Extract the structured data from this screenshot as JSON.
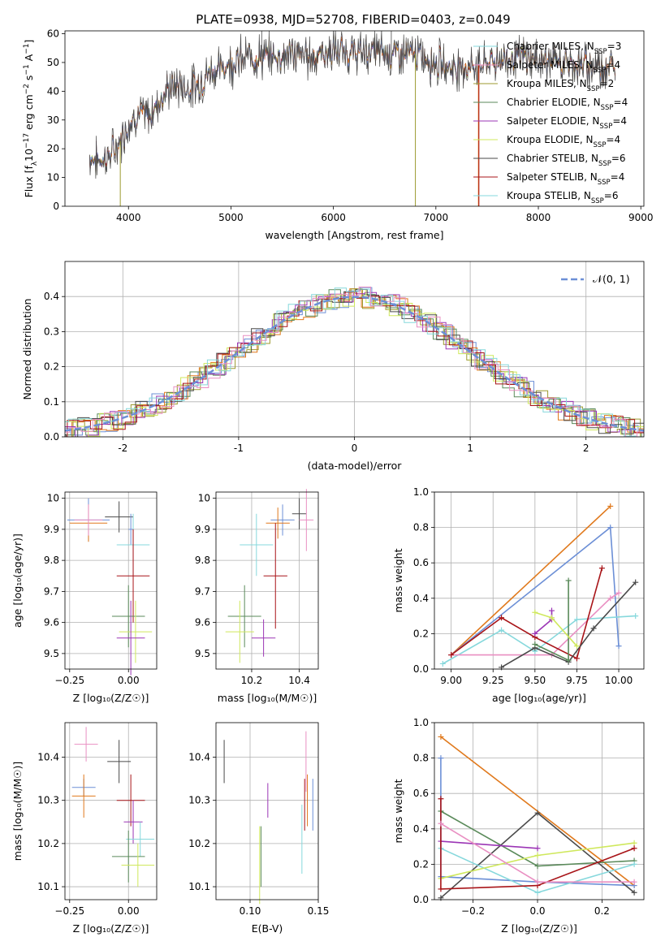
{
  "title": "PLATE=0938, MJD=52708, FIBERID=0403, z=0.049",
  "colors": {
    "blue": "#6c8fd6",
    "orange": "#e0791c",
    "olive": "#9c9a2f",
    "green": "#5a8a5a",
    "purple": "#9b35b5",
    "yellow": "#cfe85c",
    "dark": "#4a4a4a",
    "darkred": "#a81418",
    "cyan": "#86d8dc",
    "pink": "#e98fc2"
  },
  "chart_data": [
    {
      "type": "line",
      "xlabel": "wavelength [Angstrom, rest frame]",
      "ylabel_pre": "Flux [f",
      "ylabel_mid": "10",
      "ylabel_post": " erg cm",
      "ylabel_end": " s",
      "ylabel_last": " A",
      "sup_m17": "−17",
      "sup_m2": "−2",
      "sup_m1": "−1",
      "xlim": [
        3380,
        9030
      ],
      "ylim": [
        0,
        61
      ],
      "xticks": [
        4000,
        5000,
        6000,
        7000,
        8000,
        9000
      ],
      "yticks": [
        0,
        10,
        20,
        30,
        40,
        50,
        60
      ],
      "grid": false,
      "legend_position": "right",
      "legend_sub": "SSP",
      "legend": [
        {
          "label": "Chabrier MILES, N",
          "n": "=3",
          "color": "#86d8dc"
        },
        {
          "label": "Salpeter MILES, N",
          "n": "=4",
          "color": "#e98fc2"
        },
        {
          "label": "Kroupa MILES, N",
          "n": "=2",
          "color": "#9c9a2f"
        },
        {
          "label": "Chabrier ELODIE, N",
          "n": "=4",
          "color": "#5a8a5a"
        },
        {
          "label": "Salpeter ELODIE, N",
          "n": "=4",
          "color": "#9b35b5"
        },
        {
          "label": "Kroupa ELODIE, N",
          "n": "=4",
          "color": "#cfe85c"
        },
        {
          "label": "Chabrier STELIB, N",
          "n": "=6",
          "color": "#4a4a4a"
        },
        {
          "label": "Salpeter STELIB, N",
          "n": "=4",
          "color": "#a81418"
        },
        {
          "label": "Kroupa STELIB, N",
          "n": "=6",
          "color": "#86d8dc"
        }
      ],
      "spectrum_x": [
        3620,
        3700,
        3800,
        3900,
        4000,
        4100,
        4200,
        4300,
        4400,
        4500,
        4600,
        4700,
        4800,
        4900,
        5000,
        5200,
        5400,
        5600,
        5800,
        6000,
        6200,
        6400,
        6600,
        6800,
        7000,
        7200,
        7400,
        7600,
        7800,
        8000,
        8200,
        8400,
        8600,
        8750
      ],
      "spectrum_y": [
        17,
        16,
        17,
        21,
        29,
        32,
        31,
        37,
        41,
        42,
        41,
        43,
        47,
        48,
        50,
        52,
        52,
        53,
        52,
        54,
        53,
        54,
        53,
        53,
        50,
        48,
        49,
        51,
        52,
        51,
        50,
        49,
        49,
        48
      ]
    },
    {
      "type": "line",
      "xlabel": "(data-model)/error",
      "ylabel": "Normed distribution",
      "xlim": [
        -2.5,
        2.5
      ],
      "ylim": [
        0,
        0.5
      ],
      "xticks": [
        -2,
        -1,
        0,
        1,
        2
      ],
      "yticks": [
        0.0,
        0.1,
        0.2,
        0.3,
        0.4
      ],
      "grid": true,
      "legend_position": "top-right",
      "legend_label": "𝒩(0, 1)",
      "legend_color": "#6c8fd6"
    },
    {
      "type": "scatter",
      "ylabel": "age  [log₁₀(age/yr)]",
      "xlabel": "Z [log₁₀(Z/Z☉)]",
      "xlim": [
        -0.27,
        0.12
      ],
      "ylim": [
        9.45,
        10.02
      ],
      "xticks": [
        -0.25,
        0.0
      ],
      "xtick_labels": [
        "−0.25",
        "0.00"
      ],
      "yticks": [
        9.5,
        9.6,
        9.7,
        9.8,
        9.9,
        10.0
      ],
      "grid": true,
      "points": [
        {
          "x": -0.17,
          "y": 9.93,
          "xerr": 0.09,
          "yerr": 0.07,
          "color": "#6c8fd6"
        },
        {
          "x": -0.17,
          "y": 9.92,
          "xerr": 0.08,
          "yerr": 0.06,
          "color": "#e0791c"
        },
        {
          "x": -0.17,
          "y": 9.93,
          "xerr": 0.06,
          "yerr": 0.05,
          "color": "#e98fc2"
        },
        {
          "x": -0.04,
          "y": 9.94,
          "xerr": 0.06,
          "yerr": 0.05,
          "color": "#4a4a4a"
        },
        {
          "x": 0.01,
          "y": 9.9,
          "xerr": 0.01,
          "yerr": 0.05,
          "color": "#6c8fd6"
        },
        {
          "x": 0.02,
          "y": 9.85,
          "xerr": 0.07,
          "yerr": 0.1,
          "color": "#86d8dc"
        },
        {
          "x": 0.02,
          "y": 9.75,
          "xerr": 0.07,
          "yerr": 0.15,
          "color": "#a81418"
        },
        {
          "x": 0.0,
          "y": 9.62,
          "xerr": 0.07,
          "yerr": 0.1,
          "color": "#5a8a5a"
        },
        {
          "x": 0.03,
          "y": 9.57,
          "xerr": 0.07,
          "yerr": 0.1,
          "color": "#cfe85c"
        },
        {
          "x": 0.01,
          "y": 9.55,
          "xerr": 0.06,
          "yerr": 0.12,
          "color": "#9b35b5"
        }
      ]
    },
    {
      "type": "scatter",
      "xlabel": "mass [log₁₀(M/M☉)]",
      "xlim": [
        10.05,
        10.48
      ],
      "ylim": [
        9.45,
        10.02
      ],
      "xticks": [
        10.2,
        10.4
      ],
      "xtick_labels": [
        "10.2",
        "10.4"
      ],
      "yticks": [
        9.5,
        9.6,
        9.7,
        9.8,
        9.9,
        10.0
      ],
      "grid": true,
      "points": [
        {
          "x": 10.4,
          "y": 9.95,
          "xerr": 0.03,
          "yerr": 0.05,
          "color": "#4a4a4a"
        },
        {
          "x": 10.43,
          "y": 9.93,
          "xerr": 0.03,
          "yerr": 0.1,
          "color": "#e98fc2"
        },
        {
          "x": 10.33,
          "y": 9.93,
          "xerr": 0.05,
          "yerr": 0.05,
          "color": "#6c8fd6"
        },
        {
          "x": 10.31,
          "y": 9.92,
          "xerr": 0.05,
          "yerr": 0.05,
          "color": "#e0791c"
        },
        {
          "x": 10.22,
          "y": 9.85,
          "xerr": 0.07,
          "yerr": 0.1,
          "color": "#86d8dc"
        },
        {
          "x": 10.3,
          "y": 9.75,
          "xerr": 0.05,
          "yerr": 0.17,
          "color": "#a81418"
        },
        {
          "x": 10.17,
          "y": 9.62,
          "xerr": 0.07,
          "yerr": 0.1,
          "color": "#5a8a5a"
        },
        {
          "x": 10.15,
          "y": 9.57,
          "xerr": 0.06,
          "yerr": 0.1,
          "color": "#cfe85c"
        },
        {
          "x": 10.25,
          "y": 9.55,
          "xerr": 0.05,
          "yerr": 0.06,
          "color": "#9b35b5"
        }
      ]
    },
    {
      "type": "line",
      "xlabel": "age  [log₁₀(age/yr)]",
      "ylabel": "mass weight",
      "xlim": [
        8.9,
        10.15
      ],
      "ylim": [
        0,
        1
      ],
      "xticks": [
        9.0,
        9.25,
        9.5,
        9.75,
        10.0
      ],
      "xtick_labels": [
        "9.00",
        "9.25",
        "9.50",
        "9.75",
        "10.00"
      ],
      "yticks": [
        0.0,
        0.2,
        0.4,
        0.6,
        0.8,
        1.0
      ],
      "ytick_labels": [
        "0.0",
        "0.2",
        "0.4",
        "0.6",
        "0.8",
        "1.0"
      ],
      "grid": true,
      "series": [
        {
          "color": "#e0791c",
          "x": [
            9.0,
            9.95
          ],
          "y": [
            0.08,
            0.92
          ]
        },
        {
          "color": "#6c8fd6",
          "x": [
            9.0,
            9.95,
            10.0
          ],
          "y": [
            0.08,
            0.8,
            0.13
          ]
        },
        {
          "color": "#86d8dc",
          "x": [
            8.95,
            9.3,
            9.5,
            9.75,
            10.1
          ],
          "y": [
            0.03,
            0.22,
            0.1,
            0.28,
            0.3
          ]
        },
        {
          "color": "#e98fc2",
          "x": [
            9.0,
            9.6,
            9.95,
            10.0
          ],
          "y": [
            0.08,
            0.08,
            0.4,
            0.43
          ]
        },
        {
          "color": "#a81418",
          "x": [
            9.0,
            9.3,
            9.5,
            9.75,
            9.9
          ],
          "y": [
            0.08,
            0.29,
            0.18,
            0.06,
            0.57
          ]
        },
        {
          "color": "#4a4a4a",
          "x": [
            9.3,
            9.5,
            9.7,
            9.85,
            10.1
          ],
          "y": [
            0.01,
            0.12,
            0.04,
            0.23,
            0.49
          ]
        },
        {
          "color": "#5a8a5a",
          "x": [
            9.5,
            9.7,
            9.7
          ],
          "y": [
            0.14,
            0.05,
            0.5
          ]
        },
        {
          "color": "#9b35b5",
          "x": [
            9.5,
            9.6,
            9.6
          ],
          "y": [
            0.2,
            0.28,
            0.33
          ]
        },
        {
          "color": "#cfe85c",
          "x": [
            9.5,
            9.6,
            9.75
          ],
          "y": [
            0.32,
            0.29,
            0.13
          ]
        }
      ]
    },
    {
      "type": "scatter",
      "ylabel": "mass [log₁₀(M/M☉)]",
      "xlabel": "Z [log₁₀(Z/Z☉)]",
      "xlim": [
        -0.27,
        0.12
      ],
      "ylim": [
        10.07,
        10.48
      ],
      "xticks": [
        -0.25,
        0.0
      ],
      "xtick_labels": [
        "−0.25",
        "0.00"
      ],
      "yticks": [
        10.1,
        10.2,
        10.3,
        10.4
      ],
      "grid": true,
      "points": [
        {
          "x": -0.18,
          "y": 10.43,
          "xerr": 0.05,
          "yerr": 0.04,
          "color": "#e98fc2"
        },
        {
          "x": -0.04,
          "y": 10.39,
          "xerr": 0.05,
          "yerr": 0.05,
          "color": "#4a4a4a"
        },
        {
          "x": -0.19,
          "y": 10.33,
          "xerr": 0.05,
          "yerr": 0.02,
          "color": "#6c8fd6"
        },
        {
          "x": -0.19,
          "y": 10.31,
          "xerr": 0.05,
          "yerr": 0.05,
          "color": "#e0791c"
        },
        {
          "x": 0.01,
          "y": 10.3,
          "xerr": 0.06,
          "yerr": 0.06,
          "color": "#a81418"
        },
        {
          "x": 0.02,
          "y": 10.25,
          "xerr": 0.04,
          "yerr": 0.05,
          "color": "#9b35b5"
        },
        {
          "x": 0.05,
          "y": 10.21,
          "xerr": 0.06,
          "yerr": 0.04,
          "color": "#86d8dc"
        },
        {
          "x": 0.0,
          "y": 10.17,
          "xerr": 0.07,
          "yerr": 0.06,
          "color": "#5a8a5a"
        },
        {
          "x": 0.04,
          "y": 10.15,
          "xerr": 0.07,
          "yerr": 0.05,
          "color": "#cfe85c"
        }
      ]
    },
    {
      "type": "scatter",
      "xlabel": "E(B-V)",
      "xlim": [
        0.075,
        0.15
      ],
      "ylim": [
        10.07,
        10.48
      ],
      "xticks": [
        0.1,
        0.15
      ],
      "xtick_labels": [
        "0.10",
        "0.15"
      ],
      "yticks": [
        10.1,
        10.2,
        10.3,
        10.4
      ],
      "grid": true,
      "points": [
        {
          "x": 0.081,
          "y": 10.39,
          "xerr": 0,
          "yerr": 0.05,
          "color": "#4a4a4a"
        },
        {
          "x": 0.141,
          "y": 10.39,
          "xerr": 0,
          "yerr": 0.07,
          "color": "#e98fc2"
        },
        {
          "x": 0.113,
          "y": 10.3,
          "xerr": 0,
          "yerr": 0.04,
          "color": "#9b35b5"
        },
        {
          "x": 0.142,
          "y": 10.3,
          "xerr": 0,
          "yerr": 0.06,
          "color": "#e0791c"
        },
        {
          "x": 0.146,
          "y": 10.29,
          "xerr": 0,
          "yerr": 0.06,
          "color": "#6c8fd6"
        },
        {
          "x": 0.14,
          "y": 10.29,
          "xerr": 0,
          "yerr": 0.06,
          "color": "#a81418"
        },
        {
          "x": 0.138,
          "y": 10.21,
          "xerr": 0,
          "yerr": 0.08,
          "color": "#86d8dc"
        },
        {
          "x": 0.108,
          "y": 10.17,
          "xerr": 0,
          "yerr": 0.07,
          "color": "#5a8a5a"
        },
        {
          "x": 0.107,
          "y": 10.15,
          "xerr": 0,
          "yerr": 0.09,
          "color": "#cfe85c"
        }
      ]
    },
    {
      "type": "line",
      "xlabel": "Z [log₁₀(Z/Z☉)]",
      "ylabel": "mass weight",
      "xlim": [
        -0.32,
        0.33
      ],
      "ylim": [
        0,
        1
      ],
      "xticks": [
        -0.2,
        0.0,
        0.2
      ],
      "xtick_labels": [
        "−0.2",
        "0.0",
        "0.2"
      ],
      "yticks": [
        0.0,
        0.2,
        0.4,
        0.6,
        0.8,
        1.0
      ],
      "ytick_labels": [
        "0.0",
        "0.2",
        "0.4",
        "0.6",
        "0.8",
        "1.0"
      ],
      "grid": true,
      "series": [
        {
          "color": "#e0791c",
          "x": [
            -0.3,
            0.3
          ],
          "y": [
            0.92,
            0.08
          ]
        },
        {
          "color": "#6c8fd6",
          "x": [
            -0.3,
            -0.3,
            0.0,
            0.3
          ],
          "y": [
            0.8,
            0.13,
            0.1,
            0.08
          ]
        },
        {
          "color": "#5a8a5a",
          "x": [
            -0.3,
            0.0,
            0.3
          ],
          "y": [
            0.5,
            0.19,
            0.22
          ]
        },
        {
          "color": "#4a4a4a",
          "x": [
            -0.3,
            0.0,
            0.3
          ],
          "y": [
            0.01,
            0.49,
            0.04
          ]
        },
        {
          "color": "#9b35b5",
          "x": [
            -0.3,
            0.0
          ],
          "y": [
            0.33,
            0.29
          ]
        },
        {
          "color": "#86d8dc",
          "x": [
            -0.3,
            0.0,
            0.3
          ],
          "y": [
            0.29,
            0.04,
            0.2
          ]
        },
        {
          "color": "#cfe85c",
          "x": [
            -0.3,
            0.0,
            0.3
          ],
          "y": [
            0.12,
            0.25,
            0.32
          ]
        },
        {
          "color": "#a81418",
          "x": [
            -0.3,
            -0.3,
            0.0,
            0.3
          ],
          "y": [
            0.57,
            0.06,
            0.08,
            0.29
          ]
        },
        {
          "color": "#e98fc2",
          "x": [
            -0.3,
            0.0,
            0.3
          ],
          "y": [
            0.43,
            0.1,
            0.1
          ]
        }
      ]
    }
  ]
}
